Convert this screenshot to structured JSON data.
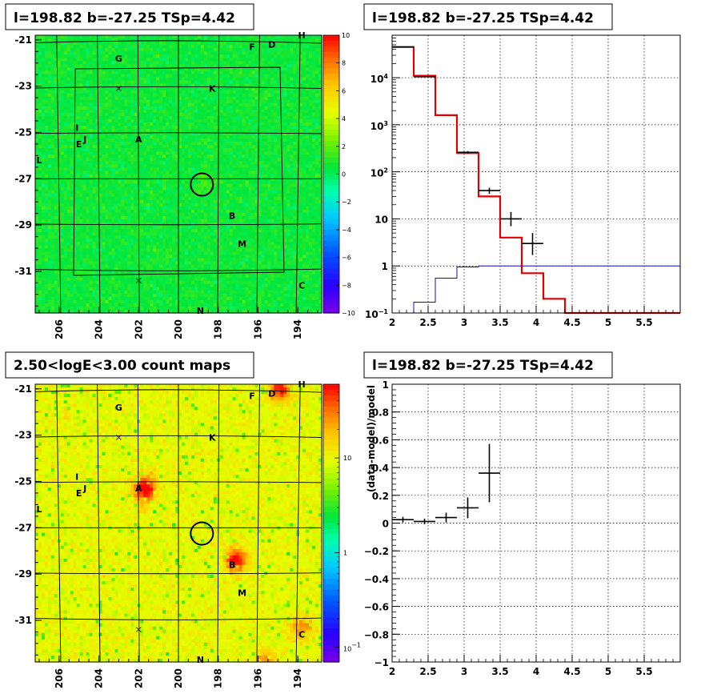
{
  "colors": {
    "model_line": "#e00000",
    "data_points": "#000000",
    "background_line": "#1010c0",
    "grid": "#000000"
  },
  "chart_data": [
    {
      "id": "tsmap",
      "type": "heatmap",
      "title": "l=198.82 b=-27.25 TSp=4.42",
      "x_ticks": [
        "206",
        "204",
        "202",
        "200",
        "198",
        "196",
        "194"
      ],
      "x_tick_values": [
        206,
        204,
        202,
        200,
        198,
        196,
        194
      ],
      "y_ticks": [
        "-21",
        "-23",
        "-25",
        "-27",
        "-29",
        "-31"
      ],
      "y_tick_values": [
        -21,
        -23,
        -25,
        -27,
        -29,
        -31
      ],
      "xlim": [
        207.2,
        192.8
      ],
      "ylim": [
        -32.8,
        -20.8
      ],
      "colorbar_ticks": [
        "10",
        "8",
        "6",
        "4",
        "2",
        "0",
        "−2",
        "−4",
        "−6",
        "−8",
        "−10"
      ],
      "colorbar_values": [
        10,
        8,
        6,
        4,
        2,
        0,
        -2,
        -4,
        -6,
        -8,
        -10
      ],
      "zrange": [
        -10,
        10
      ],
      "target": {
        "l": 198.82,
        "b": -27.25
      },
      "sources": [
        {
          "name": "A",
          "l": 202.0,
          "b": -25.3
        },
        {
          "name": "B",
          "l": 197.3,
          "b": -28.6
        },
        {
          "name": "C",
          "l": 193.8,
          "b": -31.6
        },
        {
          "name": "D",
          "l": 195.3,
          "b": -21.2
        },
        {
          "name": "E",
          "l": 205.0,
          "b": -25.5
        },
        {
          "name": "F",
          "l": 196.3,
          "b": -21.3
        },
        {
          "name": "G",
          "l": 203.0,
          "b": -21.8
        },
        {
          "name": "H",
          "l": 193.8,
          "b": -20.8
        },
        {
          "name": "I",
          "l": 205.1,
          "b": -24.8
        },
        {
          "name": "J",
          "l": 204.7,
          "b": -25.3
        },
        {
          "name": "K",
          "l": 198.3,
          "b": -23.1
        },
        {
          "name": "L",
          "l": 207.0,
          "b": -26.2
        },
        {
          "name": "M",
          "l": 196.8,
          "b": -29.8
        },
        {
          "name": "N",
          "l": 198.9,
          "b": -32.7
        }
      ],
      "crosses": [
        {
          "l": 203.0,
          "b": -23.1
        },
        {
          "l": 202.0,
          "b": -31.4
        }
      ]
    },
    {
      "id": "spectrum",
      "type": "line",
      "title": "l=198.82 b=-27.25 TSp=4.42",
      "xlim": [
        2,
        6
      ],
      "ylim": [
        0.1,
        80000
      ],
      "yscale": "log",
      "x_ticks": [
        "2",
        "2.5",
        "3",
        "3.5",
        "4",
        "4.5",
        "5",
        "5.5"
      ],
      "x_tick_values": [
        2,
        2.5,
        3,
        3.5,
        4,
        4.5,
        5,
        5.5
      ],
      "y_ticks": [
        "10^-1",
        "1",
        "10",
        "10^2",
        "10^3",
        "10^4"
      ],
      "y_tick_values": [
        0.1,
        1,
        10,
        100,
        1000,
        10000
      ],
      "y_tick_labels": {
        "tick_minus1": {
          "base": "10",
          "exp": "−1"
        },
        "tick_1": "1",
        "tick_10": "10",
        "tick_2": {
          "base": "10",
          "exp": "2"
        },
        "tick_3": {
          "base": "10",
          "exp": "3"
        },
        "tick_4": {
          "base": "10",
          "exp": "4"
        }
      },
      "grid": true,
      "model_bin_edges": [
        2.0,
        2.3,
        2.6,
        2.9,
        3.2,
        3.5,
        3.8,
        4.1,
        4.4,
        6.0
      ],
      "model_values": [
        45000,
        11000,
        1600,
        250,
        30,
        4,
        0.7,
        0.2,
        0.1
      ],
      "background_bin_edges": [
        2.0,
        2.3,
        2.6,
        2.9,
        3.2,
        6.0
      ],
      "background_values": [
        0.09,
        0.17,
        0.55,
        0.95,
        1.0
      ],
      "data_points": [
        {
          "x": 2.15,
          "xerr": 0.15,
          "y": 45000,
          "yerr_lo": 200,
          "yerr_hi": 200
        },
        {
          "x": 2.45,
          "xerr": 0.15,
          "y": 10500,
          "yerr_lo": 100,
          "yerr_hi": 100
        },
        {
          "x": 3.05,
          "xerr": 0.15,
          "y": 260,
          "yerr_lo": 16,
          "yerr_hi": 16
        },
        {
          "x": 3.35,
          "xerr": 0.15,
          "y": 40,
          "yerr_lo": 6,
          "yerr_hi": 6
        },
        {
          "x": 3.65,
          "xerr": 0.15,
          "y": 10,
          "yerr_lo": 3,
          "yerr_hi": 4
        },
        {
          "x": 3.95,
          "xerr": 0.15,
          "y": 3,
          "yerr_lo": 1.3,
          "yerr_hi": 2
        }
      ]
    },
    {
      "id": "countmap",
      "type": "heatmap",
      "title": "2.50<logE<3.00 count maps",
      "x_ticks": [
        "206",
        "204",
        "202",
        "200",
        "198",
        "196",
        "194"
      ],
      "x_tick_values": [
        206,
        204,
        202,
        200,
        198,
        196,
        194
      ],
      "y_ticks": [
        "-21",
        "-23",
        "-25",
        "-27",
        "-29",
        "-31"
      ],
      "y_tick_values": [
        -21,
        -23,
        -25,
        -27,
        -29,
        -31
      ],
      "xlim": [
        207.2,
        192.8
      ],
      "ylim": [
        -32.8,
        -20.8
      ],
      "colorbar_ticks": [
        "10",
        "1",
        "10^-1"
      ],
      "colorbar_values": [
        10,
        1,
        0.1
      ],
      "colorbar_tick_labels": {
        "cb_10": "10",
        "cb_1": "1",
        "cb_minus1": {
          "base": "10",
          "exp": "−1"
        }
      },
      "zrange": [
        0.07,
        60
      ],
      "zscale": "log",
      "target": {
        "l": 198.82,
        "b": -27.25
      }
    },
    {
      "id": "residuals",
      "type": "scatter",
      "ylabel": "(data-model)/model",
      "xlim": [
        2,
        6
      ],
      "ylim": [
        -1,
        1
      ],
      "x_ticks": [
        "2",
        "2.5",
        "3",
        "3.5",
        "4",
        "4.5",
        "5",
        "5.5"
      ],
      "x_tick_values": [
        2,
        2.5,
        3,
        3.5,
        4,
        4.5,
        5,
        5.5
      ],
      "y_ticks": [
        "1",
        "0.8",
        "0.6",
        "0.4",
        "0.2",
        "0",
        "−0.2",
        "−0.4",
        "−0.6",
        "−0.8",
        "−1"
      ],
      "y_tick_values": [
        1,
        0.8,
        0.6,
        0.4,
        0.2,
        0,
        -0.2,
        -0.4,
        -0.6,
        -0.8,
        -1
      ],
      "grid": true,
      "data_points": [
        {
          "x": 2.15,
          "xerr": 0.15,
          "y": 0.025,
          "yerr": 0.02
        },
        {
          "x": 2.45,
          "xerr": 0.15,
          "y": 0.012,
          "yerr": 0.02
        },
        {
          "x": 2.75,
          "xerr": 0.15,
          "y": 0.04,
          "yerr": 0.035
        },
        {
          "x": 3.05,
          "xerr": 0.15,
          "y": 0.11,
          "yerr": 0.075
        },
        {
          "x": 3.35,
          "xerr": 0.15,
          "y": 0.36,
          "yerr": 0.21
        }
      ]
    }
  ]
}
